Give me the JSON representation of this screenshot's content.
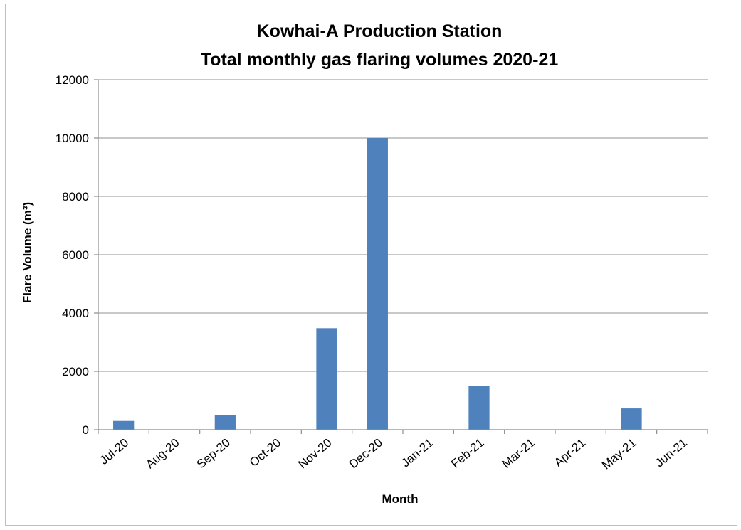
{
  "chart_data": {
    "type": "bar",
    "title_line1": "Kowhai-A Production Station",
    "title_line2": "Total monthly gas flaring volumes 2020-21",
    "xlabel": "Month",
    "ylabel": "Flare Volume (m³)",
    "categories": [
      "Jul-20",
      "Aug-20",
      "Sep-20",
      "Oct-20",
      "Nov-20",
      "Dec-20",
      "Jan-21",
      "Feb-21",
      "Mar-21",
      "Apr-21",
      "May-21",
      "Jun-21"
    ],
    "values": [
      300,
      0,
      500,
      0,
      3480,
      10000,
      0,
      1500,
      0,
      0,
      730,
      0
    ],
    "ylim": [
      0,
      12000
    ],
    "yticks": [
      0,
      2000,
      4000,
      6000,
      8000,
      10000,
      12000
    ],
    "grid": true,
    "legend": "none",
    "bar_color": "#4f81bd"
  }
}
